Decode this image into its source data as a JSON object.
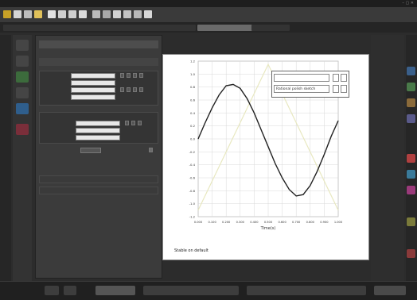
{
  "window": {
    "title": "",
    "controls": "–  ▢  ✕"
  },
  "toolbar": {
    "icons": [
      "app-icon",
      "sim-icon",
      "new-icon",
      "open-icon",
      "save-icon",
      "undo-icon",
      "redo-icon",
      "cut-icon",
      "copy-icon",
      "paste-icon",
      "run-icon",
      "stop-icon",
      "zoom-icon",
      "settings-icon"
    ]
  },
  "menubar": {
    "tabs": [
      "",
      "",
      "",
      "",
      "",
      "",
      ""
    ]
  },
  "panel": {
    "header": "",
    "section_title": "",
    "fields": [
      {
        "label": "",
        "value": ""
      },
      {
        "label": "",
        "value": ""
      },
      {
        "label": "",
        "value": ""
      },
      {
        "label": "",
        "value": ""
      }
    ],
    "subsection_title": "",
    "subfields": [
      {
        "label": "",
        "value": ""
      },
      {
        "label": "",
        "value": ""
      },
      {
        "label": "",
        "value": ""
      }
    ],
    "footer_items": [
      "",
      ""
    ]
  },
  "plot": {
    "legend_row1": "",
    "legend_row2": "Rational polish sketch",
    "footer": "Stable on default",
    "colors": {
      "curve": "#222222",
      "ghost": "#e8e8c0",
      "grid": "#d8d8d8",
      "legend_border": "#666666"
    }
  },
  "chart_data": {
    "type": "line",
    "title": "",
    "xlabel": "Time(s)",
    "ylabel": "",
    "y2label": "",
    "xlim": [
      0,
      1
    ],
    "ylim": [
      -1.2,
      1.2
    ],
    "x_ticks": [
      "0.000",
      "0.100",
      "0.200",
      "0.300",
      "0.400",
      "0.500",
      "0.600",
      "0.700",
      "0.800",
      "0.900",
      "1.000"
    ],
    "y_ticks": [
      "1.2",
      "1.0",
      "0.8",
      "0.6",
      "0.4",
      "0.2",
      "0.0",
      "-0.2",
      "-0.4",
      "-0.6",
      "-0.8",
      "-1.0",
      "-1.2"
    ],
    "y2_ticks": [
      "",
      "",
      "",
      "",
      "",
      "",
      "",
      "",
      "",
      "",
      "",
      "",
      ""
    ],
    "grid": true,
    "series": [
      {
        "x": [
          0.0,
          0.05,
          0.1,
          0.15,
          0.2,
          0.25,
          0.3,
          0.35,
          0.4,
          0.45,
          0.5,
          0.55,
          0.6,
          0.65,
          0.7,
          0.75,
          0.8,
          0.85,
          0.9,
          0.95,
          1.0
        ],
        "values": [
          0.0,
          0.25,
          0.48,
          0.68,
          0.82,
          0.84,
          0.78,
          0.62,
          0.4,
          0.14,
          -0.12,
          -0.38,
          -0.6,
          -0.78,
          -0.88,
          -0.86,
          -0.72,
          -0.5,
          -0.24,
          0.04,
          0.28
        ]
      }
    ]
  },
  "status": {
    "items": [
      "",
      "",
      "",
      "",
      ""
    ]
  }
}
